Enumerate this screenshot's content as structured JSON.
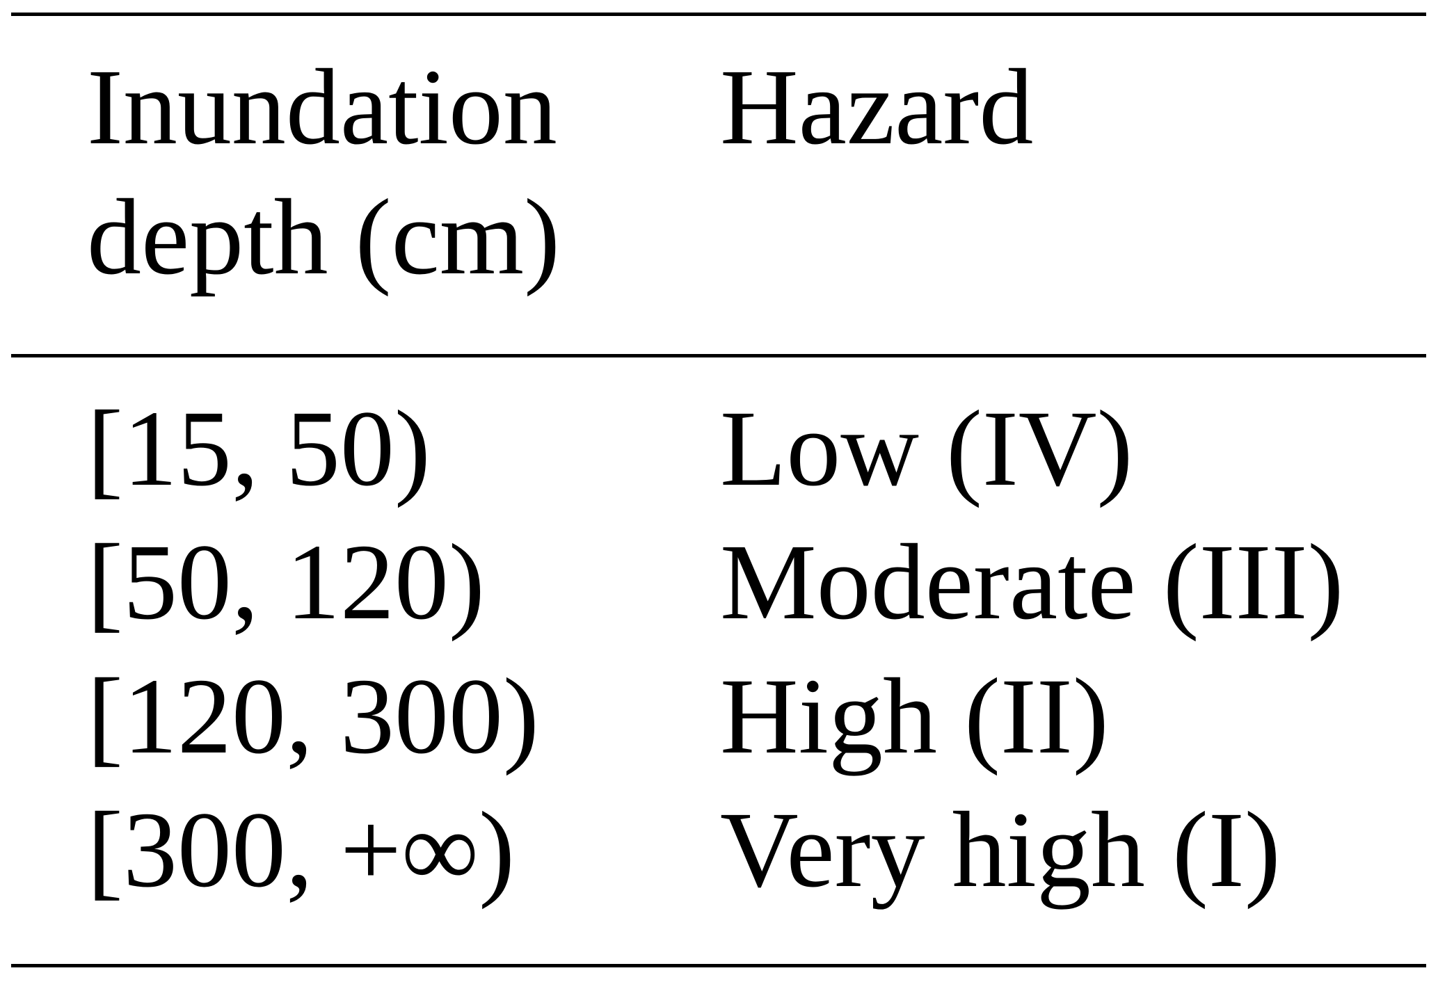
{
  "table": {
    "header": [
      "Inundation depth (cm)",
      "Hazard"
    ],
    "rows": [
      [
        "[15, 50)",
        "Low (IV)"
      ],
      [
        "[50, 120)",
        "Moderate (III)"
      ],
      [
        "[120, 300)",
        "High (II)"
      ],
      [
        "[300, +∞)",
        "Very high (I)"
      ]
    ]
  }
}
